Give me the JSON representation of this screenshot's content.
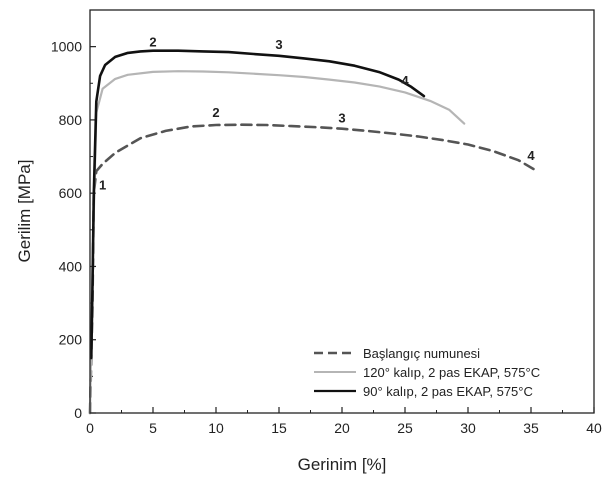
{
  "chart_data": {
    "type": "line",
    "title": "",
    "xlabel": "Gerinim [%]",
    "ylabel": "Gerilim [MPa]",
    "xlim": [
      0,
      40
    ],
    "ylim": [
      0,
      1100
    ],
    "x_ticks": [
      "0",
      "5",
      "10",
      "15",
      "20",
      "25",
      "30",
      "35",
      "40"
    ],
    "y_ticks": [
      "0",
      "200",
      "400",
      "600",
      "800",
      "1000"
    ],
    "grid": false,
    "legend_position": "bottom-right",
    "series": [
      {
        "name": "Başlangıç numunesi",
        "color": "#555555",
        "dash": "dashed",
        "points": [
          [
            0,
            0
          ],
          [
            0.2,
            300
          ],
          [
            0.3,
            600
          ],
          [
            0.5,
            660
          ],
          [
            1,
            680
          ],
          [
            2,
            710
          ],
          [
            4,
            750
          ],
          [
            6,
            770
          ],
          [
            8,
            782
          ],
          [
            10,
            786
          ],
          [
            12,
            787
          ],
          [
            14,
            786
          ],
          [
            16,
            783
          ],
          [
            18,
            780
          ],
          [
            20,
            776
          ],
          [
            22,
            770
          ],
          [
            24,
            763
          ],
          [
            26,
            755
          ],
          [
            28,
            745
          ],
          [
            30,
            733
          ],
          [
            32,
            715
          ],
          [
            34,
            690
          ],
          [
            35.5,
            660
          ]
        ]
      },
      {
        "name": "120° kalıp, 2 pas EKAP, 575°C",
        "color": "#b5b5b5",
        "dash": "solid",
        "points": [
          [
            0,
            0
          ],
          [
            0.2,
            400
          ],
          [
            0.5,
            820
          ],
          [
            1,
            885
          ],
          [
            2,
            912
          ],
          [
            3,
            923
          ],
          [
            5,
            931
          ],
          [
            7,
            933
          ],
          [
            9,
            932
          ],
          [
            11,
            930
          ],
          [
            13,
            926
          ],
          [
            15,
            922
          ],
          [
            17,
            917
          ],
          [
            19,
            910
          ],
          [
            21,
            902
          ],
          [
            23,
            891
          ],
          [
            25,
            875
          ],
          [
            27,
            852
          ],
          [
            28.5,
            828
          ],
          [
            29.7,
            790
          ]
        ]
      },
      {
        "name": "90° kalıp, 2 pas EKAP, 575°C",
        "color": "#111111",
        "dash": "solid",
        "points": [
          [
            0.1,
            150
          ],
          [
            0.2,
            350
          ],
          [
            0.3,
            600
          ],
          [
            0.5,
            850
          ],
          [
            0.8,
            920
          ],
          [
            1.2,
            950
          ],
          [
            2,
            972
          ],
          [
            3,
            983
          ],
          [
            4,
            987
          ],
          [
            5,
            989
          ],
          [
            7,
            989
          ],
          [
            9,
            987
          ],
          [
            11,
            985
          ],
          [
            13,
            980
          ],
          [
            15,
            975
          ],
          [
            17,
            968
          ],
          [
            19,
            960
          ],
          [
            21,
            948
          ],
          [
            23,
            930
          ],
          [
            24.5,
            910
          ],
          [
            25.5,
            890
          ],
          [
            26.5,
            865
          ]
        ]
      }
    ],
    "annotations": [
      {
        "text": "1",
        "x": 1.0,
        "y": 610
      },
      {
        "text": "2",
        "x": 5.0,
        "y": 1000
      },
      {
        "text": "3",
        "x": 15.0,
        "y": 993
      },
      {
        "text": "4",
        "x": 25.0,
        "y": 895
      },
      {
        "text": "2",
        "x": 10.0,
        "y": 808
      },
      {
        "text": "3",
        "x": 20.0,
        "y": 793
      },
      {
        "text": "4",
        "x": 35.0,
        "y": 690
      }
    ],
    "legend": [
      {
        "text": "Başlangıç numunesi"
      },
      {
        "text": "120° kalıp, 2 pas EKAP, 575°C"
      },
      {
        "text": "90° kalıp, 2 pas EKAP, 575°C"
      }
    ]
  }
}
